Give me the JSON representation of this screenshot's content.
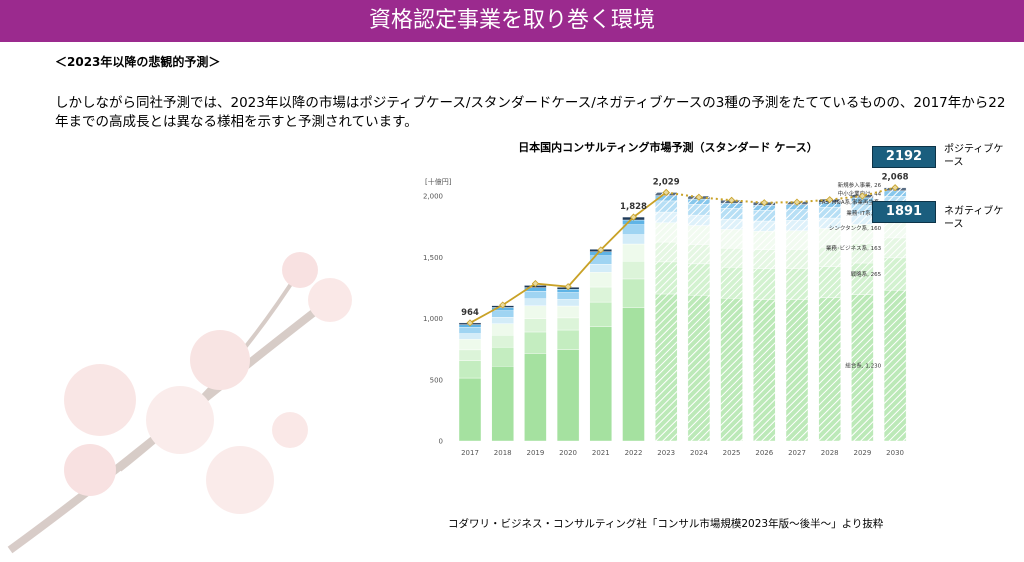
{
  "header": {
    "title": "資格認定事業を取り巻く環境"
  },
  "subtitle": "＜2023年以降の悲観的予測＞",
  "body": "しかしながら同社予測では、2023年以降の市場はポジティブケース/スタンダードケース/ネガティブケースの3種の予測をたてているものの、2017年から22年までの高成長とは異なる様相を示すと予測されています。",
  "source": "コダワリ・ビジネス・コンサルティング社「コンサル市場規模2023年版～後半～」より抜粋",
  "callouts": [
    {
      "value": 2192,
      "label": "ポジティブケース"
    },
    {
      "value": 1891,
      "label": "ネガティブケース"
    }
  ],
  "chart_data": {
    "type": "stacked_bar",
    "title": "日本国内コンサルティング市場予測（スタンダード ケース）",
    "y_unit": "[十億円]",
    "categories": [
      "2017",
      "2018",
      "2019",
      "2020",
      "2021",
      "2022",
      "2023",
      "2024",
      "2025",
      "2026",
      "2027",
      "2028",
      "2029",
      "2030"
    ],
    "ylim": [
      0,
      2100
    ],
    "yticks": [
      0,
      500,
      {
        "value": 1000,
        "label": "1,000"
      },
      {
        "value": 1500,
        "label": "1,500"
      },
      {
        "value": 2000,
        "label": "2,000"
      }
    ],
    "series": [
      {
        "label": "総合系, 1,230",
        "color": "#a5e1a0",
        "values": [
          514,
          610,
          715,
          745,
          935,
          1090,
          1200,
          1190,
          1165,
          1155,
          1155,
          1170,
          1195,
          1230
        ]
      },
      {
        "label": "戦略系, 265",
        "color": "#c4edc0",
        "values": [
          142,
          156,
          175,
          161,
          199,
          233,
          262,
          256,
          253,
          251,
          253,
          254,
          258,
          265
        ]
      },
      {
        "label": "業務･ビジネス系, 163",
        "color": "#dcf4d9",
        "values": [
          88,
          97,
          108,
          99,
          123,
          144,
          162,
          158,
          156,
          155,
          156,
          157,
          159,
          163
        ]
      },
      {
        "label": "シンクタンク系, 160",
        "color": "#eefaec",
        "values": [
          86,
          95,
          106,
          97,
          120,
          141,
          158,
          155,
          153,
          152,
          153,
          154,
          156,
          160
        ]
      },
      {
        "label": "業務･IT系, 88",
        "color": "#d3ecf8",
        "values": [
          47,
          52,
          58,
          54,
          66,
          77,
          87,
          85,
          84,
          83,
          84,
          85,
          86,
          88
        ]
      },
      {
        "label": "FAS･M&A系,事業再生系,",
        "color": "#9fd4f2",
        "values": [
          50,
          54,
          61,
          56,
          69,
          81,
          91,
          89,
          88,
          87,
          88,
          89,
          90,
          92
        ]
      },
      {
        "label": "中小企業向け, 44",
        "color": "#5fb4e6",
        "values": [
          23,
          26,
          29,
          27,
          33,
          38,
          43,
          42,
          41,
          41,
          41,
          41,
          41,
          44
        ]
      },
      {
        "label": "新規参入事業, 26",
        "color": "#1f3b5a",
        "values": [
          14,
          15,
          18,
          16,
          20,
          24,
          26,
          25,
          25,
          26,
          25,
          25,
          25,
          26
        ]
      }
    ],
    "lines": [
      {
        "color": "#c9a227",
        "dashed": false,
        "values": [
          964,
          1110,
          1285,
          1260,
          1560,
          1828,
          2029,
          null,
          null,
          null,
          null,
          null,
          null,
          null
        ],
        "value_labels": [
          "964",
          null,
          null,
          null,
          null,
          "1,828",
          "2,029",
          null,
          null,
          null,
          null,
          null,
          null,
          null
        ]
      },
      {
        "color": "#c9a227",
        "dashed": true,
        "values": [
          null,
          null,
          null,
          null,
          null,
          null,
          2029,
          1990,
          1965,
          1945,
          1950,
          1970,
          2000,
          2068
        ],
        "value_labels": [
          null,
          null,
          null,
          null,
          null,
          null,
          null,
          null,
          null,
          null,
          null,
          null,
          null,
          "2,068"
        ]
      }
    ]
  }
}
